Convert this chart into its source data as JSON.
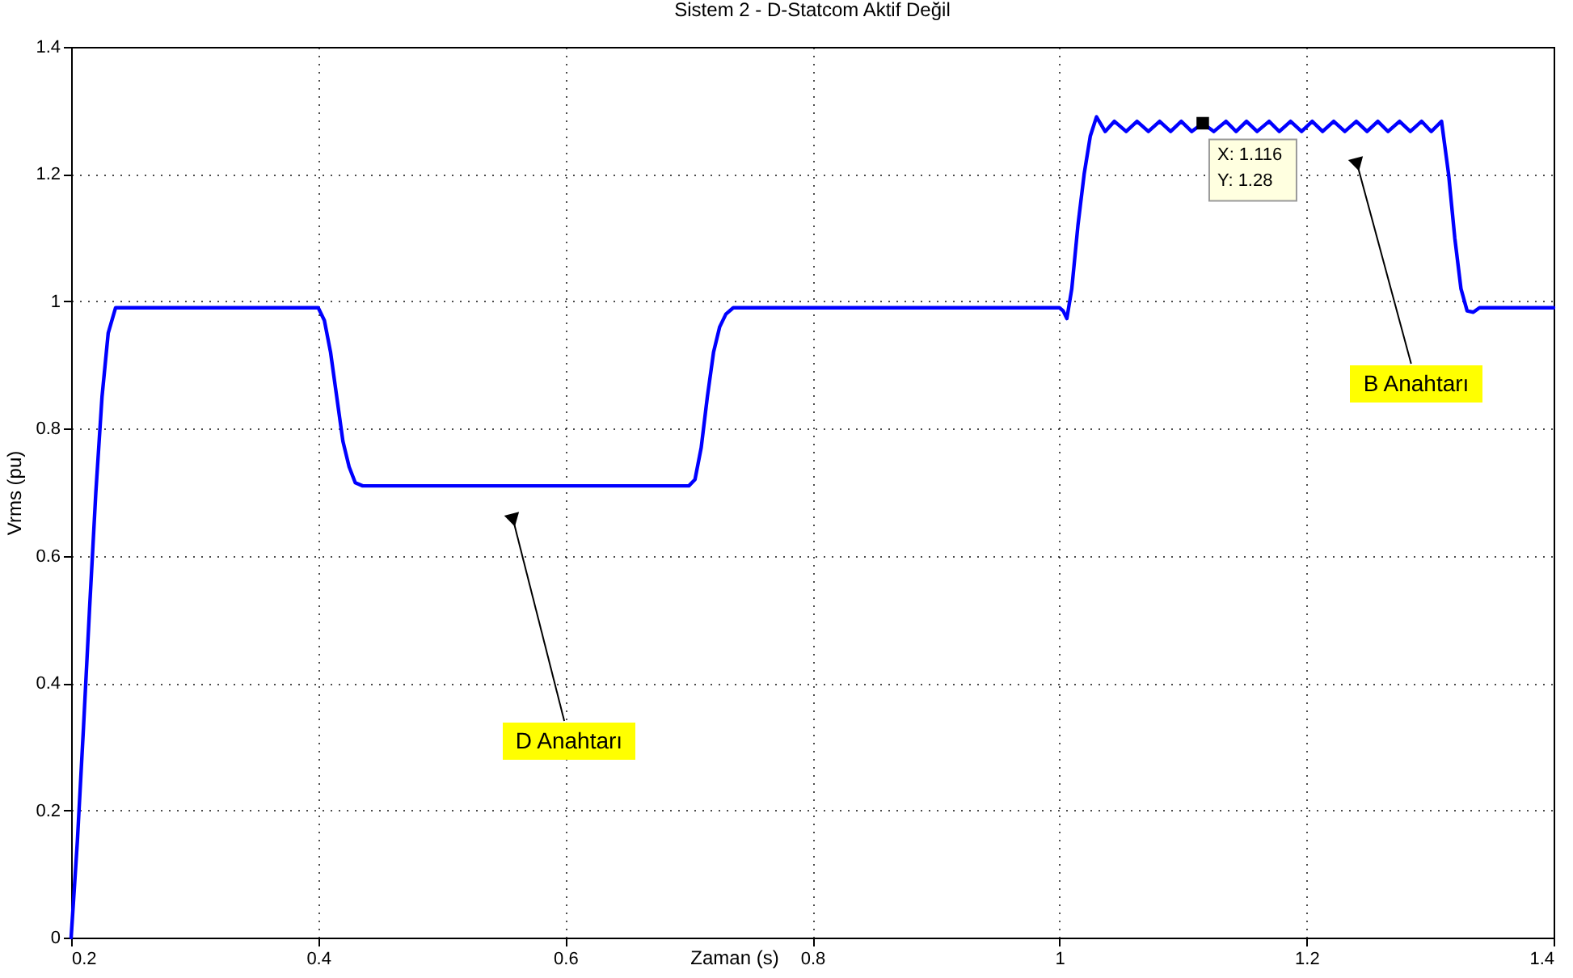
{
  "chart_data": {
    "type": "line",
    "title": "Sistem 2 - D-Statcom Aktif Değil",
    "xlabel": "Zaman (s)",
    "ylabel": "Vrms (pu)",
    "x": [
      0.2,
      0.205,
      0.21,
      0.215,
      0.22,
      0.225,
      0.23,
      0.236,
      0.4,
      0.405,
      0.41,
      0.415,
      0.42,
      0.425,
      0.43,
      0.436,
      0.7,
      0.705,
      0.71,
      0.715,
      0.72,
      0.725,
      0.73,
      0.736,
      1.0,
      1.003,
      1.006,
      1.01,
      1.015,
      1.02,
      1.025,
      1.03,
      1.037,
      1.0445,
      1.054,
      1.0628,
      1.072,
      1.0811,
      1.09,
      1.0986,
      1.107,
      1.116,
      1.125,
      1.1348,
      1.143,
      1.1514,
      1.16,
      1.1697,
      1.178,
      1.1871,
      1.196,
      1.2046,
      1.213,
      1.222,
      1.231,
      1.2403,
      1.249,
      1.2577,
      1.266,
      1.2753,
      1.284,
      1.2931,
      1.301,
      1.3093,
      1.315,
      1.32,
      1.325,
      1.33,
      1.335,
      1.34,
      1.4
    ],
    "series": [
      {
        "color": "#0000ff",
        "values": [
          0,
          0.15,
          0.33,
          0.52,
          0.7,
          0.85,
          0.95,
          0.99,
          0.99,
          0.97,
          0.92,
          0.85,
          0.78,
          0.74,
          0.715,
          0.71,
          0.71,
          0.72,
          0.77,
          0.85,
          0.92,
          0.96,
          0.98,
          0.99,
          0.99,
          0.985,
          0.973,
          1.02,
          1.12,
          1.2,
          1.26,
          1.29,
          1.267,
          1.283,
          1.267,
          1.283,
          1.267,
          1.283,
          1.267,
          1.283,
          1.267,
          1.28,
          1.267,
          1.283,
          1.267,
          1.283,
          1.267,
          1.283,
          1.267,
          1.283,
          1.267,
          1.283,
          1.267,
          1.283,
          1.267,
          1.283,
          1.267,
          1.283,
          1.267,
          1.283,
          1.267,
          1.283,
          1.267,
          1.283,
          1.2,
          1.1,
          1.02,
          0.985,
          0.983,
          0.99,
          0.99
        ]
      }
    ],
    "xlim": [
      0.2,
      1.4
    ],
    "xticks": [
      0.2,
      0.4,
      0.6,
      0.8,
      1,
      1.2,
      1.4
    ],
    "ylim": [
      0,
      1.4
    ],
    "yticks": [
      0,
      0.2,
      0.4,
      0.6,
      0.8,
      1,
      1.2,
      1.4
    ],
    "grid": true,
    "marker": "none",
    "line_style": "solid",
    "annotations": [
      "D Anahtarı",
      "B Anahtarı",
      {
        "text": "X: 1.116\nY: 1.28",
        "x": 1.116,
        "y": 1.28
      }
    ]
  }
}
